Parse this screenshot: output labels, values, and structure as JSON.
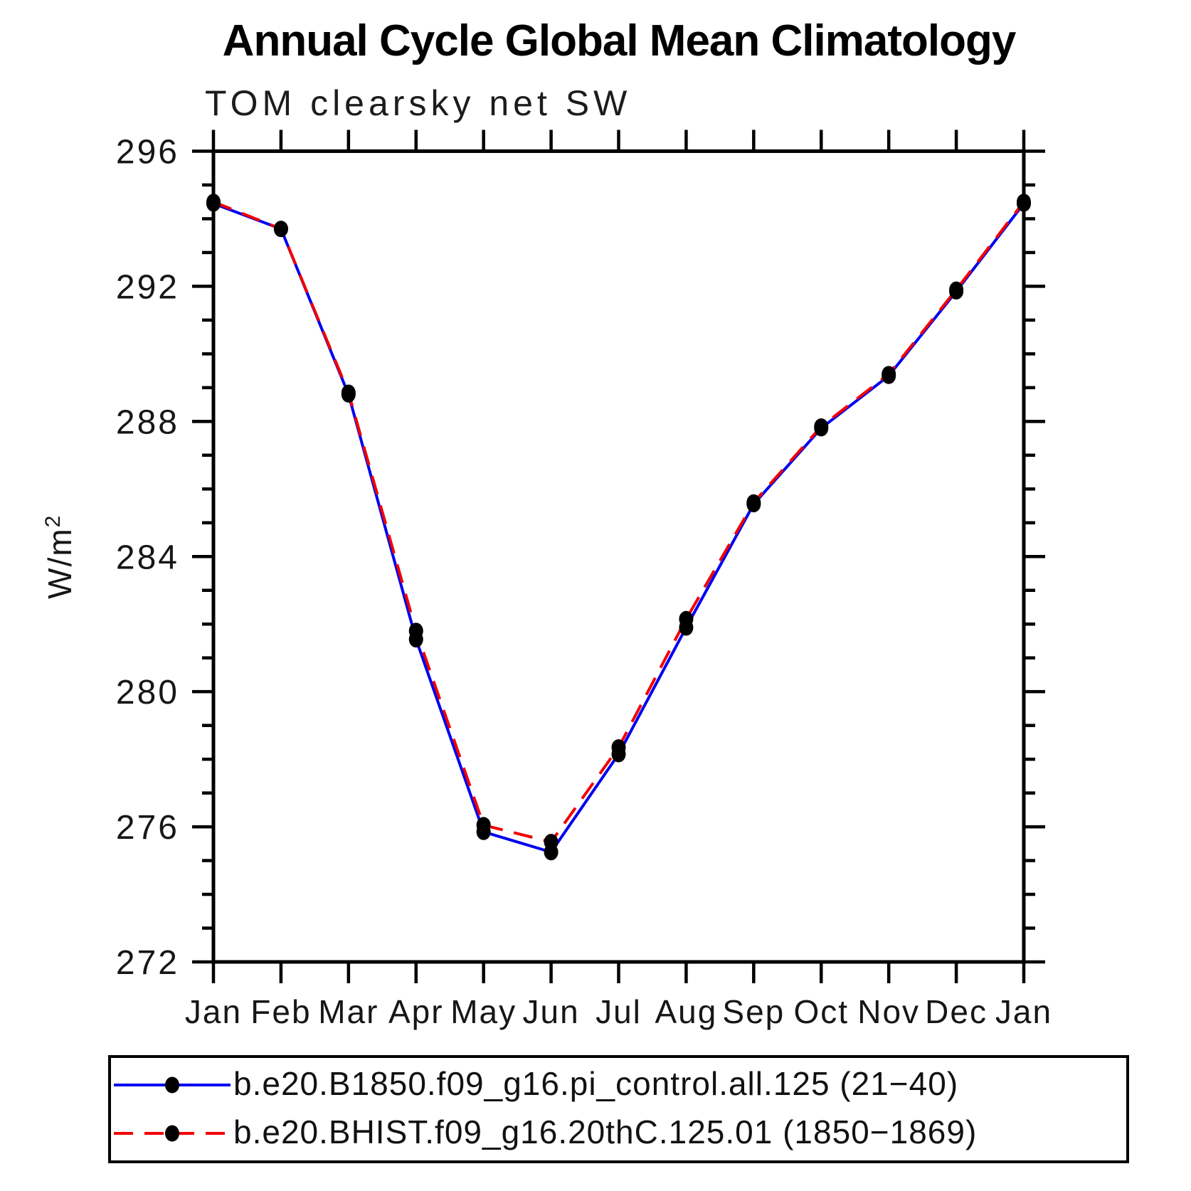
{
  "chart_data": {
    "type": "line",
    "title": "Annual Cycle Global Mean Climatology",
    "subtitle": "TOM clearsky net SW",
    "ylabel": "W/m",
    "ylabel_sup": "2",
    "x_categories": [
      "Jan",
      "Feb",
      "Mar",
      "Apr",
      "May",
      "Jun",
      "Jul",
      "Aug",
      "Sep",
      "Oct",
      "Nov",
      "Dec",
      "Jan"
    ],
    "ylim": [
      272,
      296
    ],
    "y_major_step": 4,
    "y_minor_step": 1,
    "grid": false,
    "legend_position": "bottom",
    "series": [
      {
        "name": "b.e20.B1850.f09_g16.pi_control.all.125 (21−40)",
        "color": "#0000f0",
        "style": "solid",
        "marker": "dot",
        "values": [
          294.45,
          293.7,
          288.8,
          281.55,
          275.85,
          275.25,
          278.15,
          281.9,
          285.55,
          287.8,
          289.35,
          291.85,
          294.45
        ]
      },
      {
        "name": "b.e20.BHIST.f09_g16.20thC.125.01 (1850−1869)",
        "color": "#f20000",
        "style": "dashed",
        "marker": "dot",
        "values": [
          294.5,
          293.7,
          288.85,
          281.8,
          276.05,
          275.55,
          278.35,
          282.15,
          285.6,
          287.85,
          289.4,
          291.9,
          294.5
        ]
      }
    ],
    "marker_color": "#000000",
    "axis_color": "#000000"
  }
}
